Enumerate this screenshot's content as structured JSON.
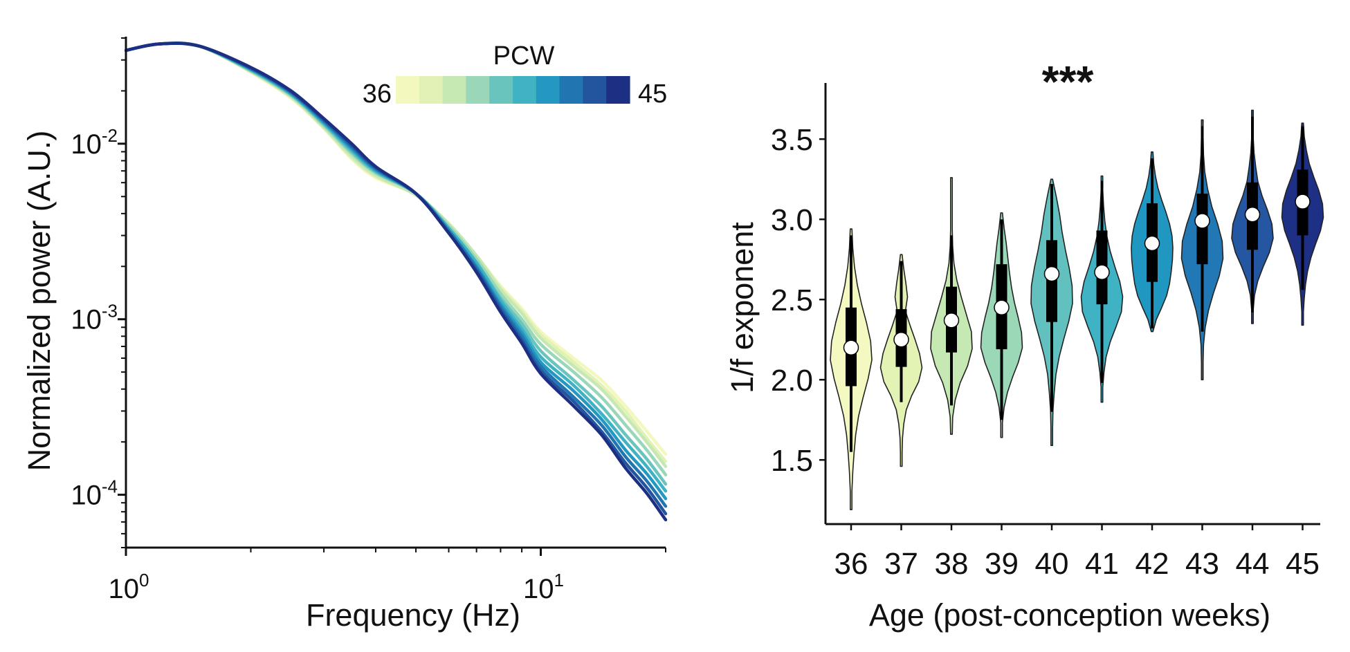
{
  "chart_data": [
    {
      "type": "line",
      "title": "",
      "xlabel": "Frequency (Hz)",
      "ylabel": "Normalized power (A.U.)",
      "xscale": "log",
      "yscale": "log",
      "xlim": [
        1,
        20
      ],
      "ylim": [
        5e-05,
        0.04
      ],
      "x_tick_labels": [
        {
          "value": 1,
          "base": "10",
          "exp": "0"
        },
        {
          "value": 10,
          "base": "10",
          "exp": "1"
        }
      ],
      "y_tick_labels": [
        {
          "value": 0.01,
          "base": "10",
          "exp": "-2"
        },
        {
          "value": 0.001,
          "base": "10",
          "exp": "-3"
        },
        {
          "value": 0.0001,
          "base": "10",
          "exp": "-4"
        }
      ],
      "colorbar": {
        "title": "PCW",
        "min_label": "36",
        "max_label": "45",
        "min": 36,
        "max": 45
      },
      "grid": false,
      "x": [
        1.0,
        1.2,
        1.5,
        2.0,
        2.5,
        3.0,
        3.5,
        4.0,
        5.0,
        6.0,
        7.0,
        8.0,
        9.0,
        10.0,
        12.0,
        14.0,
        16.0,
        18.0,
        20.0
      ],
      "series": [
        {
          "pcw": 36,
          "color": "#f3f8bf",
          "values": [
            0.034,
            0.037,
            0.036,
            0.0255,
            0.0182,
            0.0122,
            0.0082,
            0.0064,
            0.0051,
            0.0035,
            0.0023,
            0.00155,
            0.00115,
            0.00085,
            0.0006,
            0.00045,
            0.00032,
            0.00023,
            0.00017
          ]
        },
        {
          "pcw": 37,
          "color": "#e2f2b6",
          "values": [
            0.034,
            0.037,
            0.036,
            0.0256,
            0.0183,
            0.0123,
            0.0083,
            0.0065,
            0.0051,
            0.0035,
            0.0023,
            0.00152,
            0.00112,
            0.00082,
            0.00057,
            0.00042,
            0.0003,
            0.00021,
            0.000155
          ]
        },
        {
          "pcw": 38,
          "color": "#c6e8b3",
          "values": [
            0.034,
            0.037,
            0.036,
            0.0258,
            0.0185,
            0.0124,
            0.0085,
            0.0066,
            0.0051,
            0.0035,
            0.0023,
            0.00148,
            0.00108,
            0.00078,
            0.00054,
            0.0004,
            0.00028,
            0.0002,
            0.000145
          ]
        },
        {
          "pcw": 39,
          "color": "#99d7b8",
          "values": [
            0.034,
            0.037,
            0.036,
            0.026,
            0.0188,
            0.0127,
            0.0088,
            0.0068,
            0.0052,
            0.0034,
            0.0022,
            0.0014,
            0.001,
            0.00072,
            0.0005,
            0.00036,
            0.00025,
            0.00018,
            0.00013
          ]
        },
        {
          "pcw": 40,
          "color": "#6ac4be",
          "values": [
            0.034,
            0.037,
            0.036,
            0.0262,
            0.019,
            0.0129,
            0.009,
            0.0069,
            0.0052,
            0.0033,
            0.0021,
            0.00132,
            0.00094,
            0.00066,
            0.00045,
            0.00032,
            0.00022,
            0.00016,
            0.000115
          ]
        },
        {
          "pcw": 41,
          "color": "#3fb2c3",
          "values": [
            0.034,
            0.037,
            0.036,
            0.0264,
            0.0192,
            0.0131,
            0.0092,
            0.007,
            0.0052,
            0.0033,
            0.0021,
            0.00128,
            0.00088,
            0.00061,
            0.00042,
            0.00029,
            0.0002,
            0.000145,
            0.000105
          ]
        },
        {
          "pcw": 42,
          "color": "#2498c1",
          "values": [
            0.034,
            0.037,
            0.036,
            0.0266,
            0.0194,
            0.0133,
            0.0094,
            0.0071,
            0.0052,
            0.0032,
            0.002,
            0.00122,
            0.00084,
            0.00057,
            0.00039,
            0.00027,
            0.00018,
            0.000132,
            9.5e-05
          ]
        },
        {
          "pcw": 43,
          "color": "#2176b2",
          "values": [
            0.034,
            0.037,
            0.036,
            0.0268,
            0.0196,
            0.0135,
            0.0096,
            0.0072,
            0.0052,
            0.0032,
            0.00195,
            0.00118,
            0.0008,
            0.00054,
            0.00036,
            0.00025,
            0.000165,
            0.00012,
            8.6e-05
          ]
        },
        {
          "pcw": 44,
          "color": "#23559f",
          "values": [
            0.034,
            0.037,
            0.036,
            0.027,
            0.0198,
            0.0137,
            0.0098,
            0.0073,
            0.0052,
            0.0031,
            0.0019,
            0.00114,
            0.00076,
            0.00051,
            0.00034,
            0.00023,
            0.000152,
            0.00011,
            7.8e-05
          ]
        },
        {
          "pcw": 45,
          "color": "#1d2f83",
          "values": [
            0.034,
            0.037,
            0.036,
            0.0272,
            0.02,
            0.0139,
            0.01,
            0.0074,
            0.0052,
            0.0031,
            0.00185,
            0.0011,
            0.00073,
            0.00049,
            0.00032,
            0.00022,
            0.000142,
            0.000102,
            7.2e-05
          ]
        }
      ]
    },
    {
      "type": "violin",
      "title": "",
      "significance": "***",
      "xlabel": "Age (post-conception weeks)",
      "ylabel": "1/f exponent",
      "categories": [
        "36",
        "37",
        "38",
        "39",
        "40",
        "41",
        "42",
        "43",
        "44",
        "45"
      ],
      "ylim": [
        1.1,
        3.85
      ],
      "y_ticks": [
        1.5,
        2.0,
        2.5,
        3.0,
        3.5
      ],
      "y_tick_labels": [
        "1.5",
        "2.0",
        "2.5",
        "3.0",
        "3.5"
      ],
      "grid": false,
      "groups": [
        {
          "category": "36",
          "color": "#f4f9c2",
          "min": 1.19,
          "max": 2.94,
          "q1": 1.96,
          "q3": 2.45,
          "median": 2.2,
          "whisker_low": 1.55,
          "whisker_high": 2.9,
          "widths": [
            0.0,
            0.04,
            0.08,
            0.14,
            0.22,
            0.36,
            0.58,
            0.82,
            1.0,
            0.94,
            0.74,
            0.5,
            0.3,
            0.16,
            0.08,
            0.0
          ]
        },
        {
          "category": "37",
          "color": "#e3f3b4",
          "min": 1.46,
          "max": 2.78,
          "q1": 2.08,
          "q3": 2.44,
          "median": 2.25,
          "whisker_low": 1.86,
          "whisker_high": 2.74,
          "widths": [
            0.0,
            0.03,
            0.06,
            0.12,
            0.24,
            0.5,
            0.84,
            1.0,
            0.88,
            0.66,
            0.42,
            0.2,
            0.3,
            0.22,
            0.12,
            0.0
          ]
        },
        {
          "category": "38",
          "color": "#c6e8b3",
          "min": 1.66,
          "max": 3.26,
          "q1": 2.17,
          "q3": 2.58,
          "median": 2.37,
          "whisker_low": 1.84,
          "whisker_high": 2.9,
          "widths": [
            0.0,
            0.06,
            0.18,
            0.42,
            0.78,
            1.0,
            0.96,
            0.72,
            0.48,
            0.26,
            0.12,
            0.06,
            0.03,
            0.02,
            0.01,
            0.0
          ]
        },
        {
          "category": "39",
          "color": "#9ad8b8",
          "min": 1.64,
          "max": 3.04,
          "q1": 2.19,
          "q3": 2.72,
          "median": 2.45,
          "whisker_low": 1.75,
          "whisker_high": 3.0,
          "widths": [
            0.0,
            0.04,
            0.12,
            0.28,
            0.52,
            0.8,
            1.0,
            0.96,
            0.8,
            0.62,
            0.48,
            0.38,
            0.3,
            0.22,
            0.12,
            0.0
          ]
        },
        {
          "category": "40",
          "color": "#62c1bf",
          "min": 1.59,
          "max": 3.25,
          "q1": 2.36,
          "q3": 2.87,
          "median": 2.66,
          "whisker_low": 1.8,
          "whisker_high": 3.22,
          "widths": [
            0.0,
            0.03,
            0.06,
            0.12,
            0.2,
            0.36,
            0.58,
            0.82,
            1.0,
            0.98,
            0.84,
            0.66,
            0.5,
            0.38,
            0.22,
            0.0
          ]
        },
        {
          "category": "41",
          "color": "#3fb2c4",
          "min": 1.86,
          "max": 3.27,
          "q1": 2.47,
          "q3": 2.93,
          "median": 2.67,
          "whisker_low": 1.98,
          "whisker_high": 3.24,
          "widths": [
            0.0,
            0.04,
            0.1,
            0.2,
            0.4,
            0.68,
            0.94,
            1.0,
            0.86,
            0.62,
            0.4,
            0.24,
            0.14,
            0.08,
            0.04,
            0.0
          ]
        },
        {
          "category": "42",
          "color": "#1f97c1",
          "min": 2.3,
          "max": 3.42,
          "q1": 2.61,
          "q3": 3.1,
          "median": 2.85,
          "whisker_low": 2.32,
          "whisker_high": 3.38,
          "widths": [
            0.0,
            0.2,
            0.46,
            0.7,
            0.84,
            0.92,
            0.98,
            1.0,
            0.96,
            0.84,
            0.66,
            0.46,
            0.28,
            0.16,
            0.08,
            0.0
          ]
        },
        {
          "category": "43",
          "color": "#2178b4",
          "min": 2.0,
          "max": 3.62,
          "q1": 2.72,
          "q3": 3.16,
          "median": 2.99,
          "whisker_low": 2.3,
          "whisker_high": 3.58,
          "widths": [
            0.0,
            0.03,
            0.06,
            0.14,
            0.3,
            0.54,
            0.82,
            1.0,
            0.96,
            0.74,
            0.46,
            0.26,
            0.12,
            0.06,
            0.03,
            0.0
          ]
        },
        {
          "category": "44",
          "color": "#2456a2",
          "min": 2.35,
          "max": 3.68,
          "q1": 2.81,
          "q3": 3.23,
          "median": 3.03,
          "whisker_low": 2.42,
          "whisker_high": 3.64,
          "widths": [
            0.0,
            0.04,
            0.1,
            0.26,
            0.52,
            0.82,
            1.0,
            0.94,
            0.72,
            0.46,
            0.26,
            0.16,
            0.08,
            0.04,
            0.02,
            0.0
          ]
        },
        {
          "category": "45",
          "color": "#1e2f86",
          "min": 2.34,
          "max": 3.6,
          "q1": 2.9,
          "q3": 3.31,
          "median": 3.11,
          "whisker_low": 2.56,
          "whisker_high": 3.58,
          "widths": [
            0.0,
            0.04,
            0.08,
            0.14,
            0.24,
            0.4,
            0.62,
            0.86,
            1.0,
            0.96,
            0.78,
            0.54,
            0.32,
            0.18,
            0.08,
            0.0
          ]
        }
      ]
    }
  ]
}
